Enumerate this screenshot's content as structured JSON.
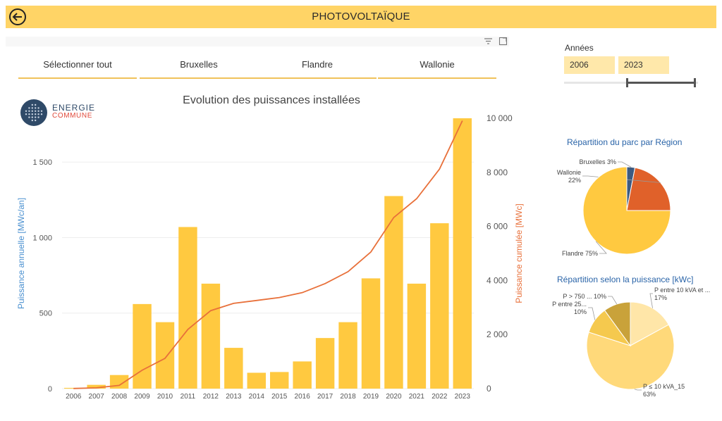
{
  "header": {
    "title": "PHOTOVOLTAÏQUE",
    "back_icon": "arrow-left-circle-icon",
    "color": "#FFD466"
  },
  "toolbar": {
    "filter_icon": "filter-icon",
    "focus_icon": "focus-mode-icon"
  },
  "region_slicer": [
    "Sélectionner tout",
    "Bruxelles",
    "Flandre",
    "Wallonie"
  ],
  "years_filter": {
    "label": "Années",
    "start": "2006",
    "end": "2023"
  },
  "logo": {
    "line1": "ENERGIE",
    "line2": "COMMUNE"
  },
  "chart_data": [
    {
      "type": "bar",
      "title": "Evolution des puissances installées",
      "categories": [
        "2006",
        "2007",
        "2008",
        "2009",
        "2010",
        "2011",
        "2012",
        "2013",
        "2014",
        "2015",
        "2016",
        "2017",
        "2018",
        "2019",
        "2020",
        "2021",
        "2022",
        "2023"
      ],
      "series": [
        {
          "name": "Puissance annuelle [MWc/an]",
          "type": "bar",
          "axis": "left",
          "color": "#FFC940",
          "values": [
            5,
            25,
            90,
            560,
            440,
            1070,
            695,
            270,
            105,
            110,
            180,
            335,
            440,
            730,
            1275,
            695,
            1095,
            1790
          ]
        },
        {
          "name": "Puissance cumulée [MWc]",
          "type": "line",
          "axis": "right",
          "color": "#E8703A",
          "values": [
            5,
            30,
            120,
            680,
            1120,
            2190,
            2885,
            3155,
            3260,
            3370,
            3550,
            3885,
            4325,
            5055,
            6330,
            7025,
            8120,
            9910
          ]
        }
      ],
      "ylabel": "Puissance annuelle [MWc/an]",
      "y2label": "Puissance cumulée [MWc]",
      "ylim": [
        0,
        1790
      ],
      "y2lim": [
        0,
        10000
      ],
      "yticks": [
        0,
        500,
        1000,
        1500
      ],
      "ytick_labels": [
        "0",
        "500",
        "1 000",
        "1 500"
      ],
      "y2ticks": [
        0,
        2000,
        4000,
        6000,
        8000,
        10000
      ],
      "y2tick_labels": [
        "0",
        "2 000",
        "4 000",
        "6 000",
        "8 000",
        "10 000"
      ],
      "grid": true
    },
    {
      "type": "pie",
      "title": "Répartition du parc par Région",
      "categories": [
        "Bruxelles",
        "Wallonie",
        "Flandre"
      ],
      "labels": [
        "Bruxelles 3%",
        "Wallonie",
        "Flandre 75%"
      ],
      "percent_labels": [
        "",
        "22%",
        ""
      ],
      "values": [
        3,
        22,
        75
      ],
      "colors": [
        "#3C5A80",
        "#E0612A",
        "#FFC940"
      ]
    },
    {
      "type": "pie",
      "title": "Répartition  selon la puissance [kWc]",
      "categories": [
        "P entre 10 kVA et ...",
        "P ≤ 10 kVA_15",
        "P entre 25...",
        "P > 750 ..."
      ],
      "labels": [
        "P entre 10 kVA et ...",
        "P ≤ 10 kVA_15",
        "P entre 25...",
        "P > 750 ... 10%"
      ],
      "percent_labels": [
        "17%",
        "63%",
        "10%",
        ""
      ],
      "values": [
        17,
        63,
        10,
        10
      ],
      "colors": [
        "#FFE6A8",
        "#FFD97A",
        "#F5C94E",
        "#C9A23A"
      ]
    }
  ]
}
